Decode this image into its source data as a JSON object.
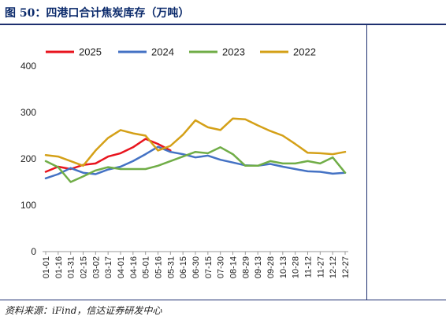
{
  "header": {
    "title": "图 50：四港口合计焦炭库存（万吨）"
  },
  "footer": {
    "source": "资料来源：iFind，信达证券研发中心"
  },
  "colors": {
    "2025": "#e8141e",
    "2024": "#4472c4",
    "2023": "#70ad47",
    "2022": "#d4a017"
  },
  "chart_data": {
    "type": "line",
    "title": "四港口合计焦炭库存（万吨）",
    "xlabel": "",
    "ylabel": "",
    "ylim": [
      0,
      400
    ],
    "yticks": [
      0,
      100,
      200,
      300,
      400
    ],
    "grid": false,
    "legend_position": "top",
    "categories": [
      "01-01",
      "01-16",
      "01-31",
      "02-15",
      "03-02",
      "03-17",
      "04-01",
      "04-16",
      "05-01",
      "05-16",
      "05-31",
      "06-15",
      "06-30",
      "07-15",
      "07-30",
      "08-14",
      "08-29",
      "09-13",
      "09-28",
      "10-13",
      "10-28",
      "11-12",
      "11-27",
      "12-12",
      "12-27"
    ],
    "series": [
      {
        "name": "2025",
        "values": [
          172,
          183,
          178,
          187,
          190,
          205,
          212,
          225,
          243,
          232,
          218,
          null,
          null,
          null,
          null,
          null,
          null,
          null,
          null,
          null,
          null,
          null,
          null,
          null,
          null
        ]
      },
      {
        "name": "2024",
        "values": [
          158,
          167,
          180,
          170,
          167,
          177,
          183,
          195,
          210,
          226,
          215,
          210,
          203,
          207,
          198,
          192,
          186,
          185,
          189,
          183,
          178,
          173,
          172,
          168,
          170
        ]
      },
      {
        "name": "2023",
        "values": [
          195,
          182,
          150,
          162,
          175,
          182,
          178,
          178,
          178,
          185,
          195,
          205,
          215,
          212,
          225,
          210,
          185,
          185,
          195,
          190,
          190,
          195,
          190,
          203,
          170
        ]
      },
      {
        "name": "2022",
        "values": [
          208,
          205,
          195,
          185,
          218,
          245,
          262,
          255,
          250,
          218,
          228,
          252,
          283,
          268,
          262,
          287,
          285,
          272,
          260,
          250,
          232,
          213,
          212,
          210,
          215
        ]
      }
    ]
  }
}
